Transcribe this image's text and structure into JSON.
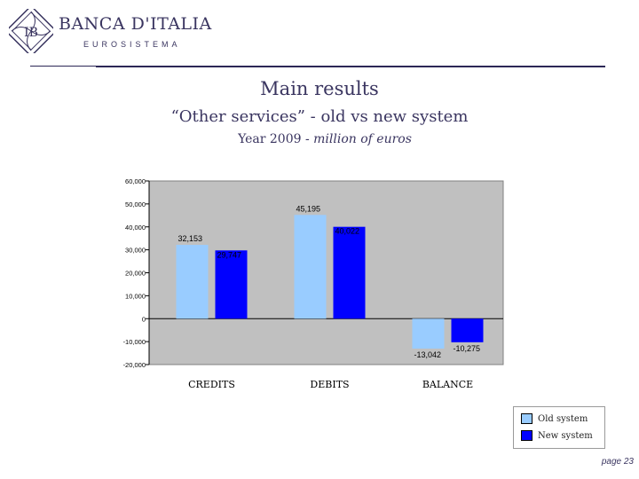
{
  "header": {
    "brand": "BANCA D'ITALIA",
    "brand_sub": "EUROSISTEMA"
  },
  "titles": {
    "main": "Main results",
    "sub": "“Other services” - old vs new system",
    "line3_plain": "Year 2009 ",
    "line3_italic": " - million of euros"
  },
  "chart_data": {
    "type": "bar",
    "categories": [
      "CREDITS",
      "DEBITS",
      "BALANCE"
    ],
    "series": [
      {
        "name": "Old system",
        "values": [
          32153,
          45195,
          -13042
        ],
        "labels": [
          "32,153",
          "45,195",
          "-13,042"
        ],
        "color": "#99ccff"
      },
      {
        "name": "New system",
        "values": [
          29747,
          40022,
          -10275
        ],
        "labels": [
          "29,747",
          "40,022",
          "-10,275"
        ],
        "color": "#0000ff"
      }
    ],
    "ylim": [
      -20000,
      60000
    ],
    "yticks": [
      60000,
      50000,
      40000,
      30000,
      20000,
      10000,
      0,
      -10000,
      -20000
    ],
    "ytick_labels": [
      "60,000",
      "50,000",
      "40,000",
      "30,000",
      "20,000",
      "10,000",
      "0",
      "-10,000",
      "-20,000"
    ],
    "plot_background": "#c0c0c0",
    "grid": false,
    "legend_position": "bottom-right"
  },
  "footer": {
    "page": "page 23"
  }
}
